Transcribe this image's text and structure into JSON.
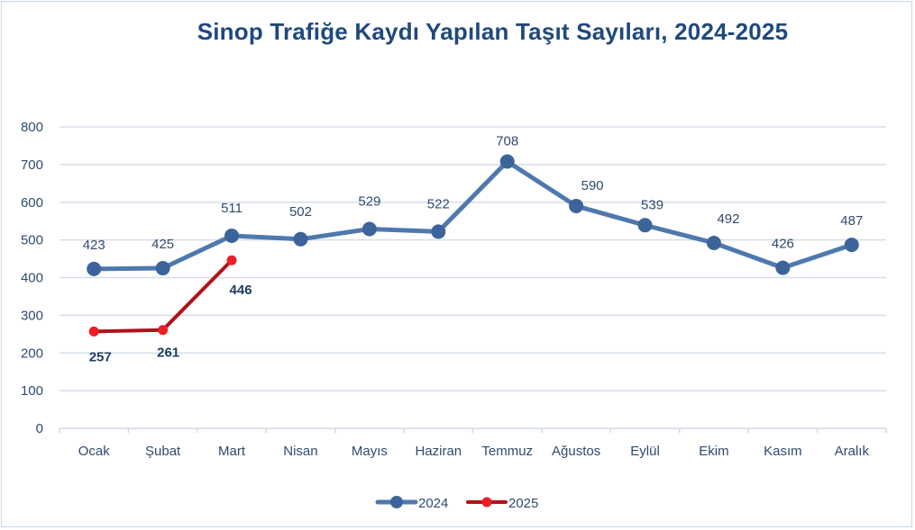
{
  "chart_data": {
    "type": "line",
    "title": "Sinop Trafiğe Kaydı Yapılan Taşıt Sayıları, 2024-2025",
    "xlabel": "",
    "ylabel": "",
    "categories": [
      "Ocak",
      "Şubat",
      "Mart",
      "Nisan",
      "Mayıs",
      "Haziran",
      "Temmuz",
      "Ağustos",
      "Eylül",
      "Ekim",
      "Kasım",
      "Aralık"
    ],
    "series": [
      {
        "name": "2024",
        "color": "#4f78ae",
        "marker_color": "#3c649a",
        "values": [
          423,
          425,
          511,
          502,
          529,
          522,
          708,
          590,
          539,
          492,
          426,
          487
        ]
      },
      {
        "name": "2025",
        "color": "#b0121b",
        "marker_color": "#ee1c24",
        "values": [
          257,
          261,
          446
        ]
      }
    ],
    "yticks": [
      0,
      100,
      200,
      300,
      400,
      500,
      600,
      700,
      800
    ],
    "ylim": [
      0,
      800
    ],
    "grid": true,
    "legend_position": "bottom",
    "data_labels": true
  }
}
